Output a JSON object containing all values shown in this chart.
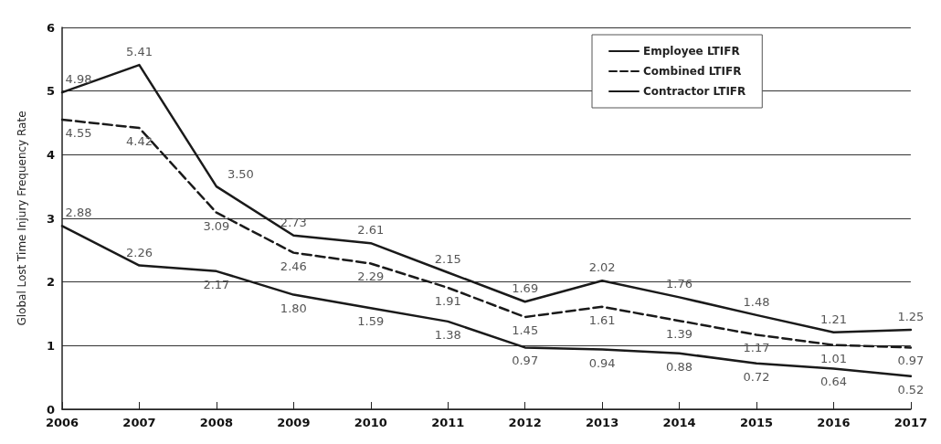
{
  "chart_data": {
    "type": "line",
    "ylabel": "Global Lost Time Injury Frequency Rate",
    "categories": [
      "2006",
      "2007",
      "2008",
      "2009",
      "2010",
      "2011",
      "2012",
      "2013",
      "2014",
      "2015",
      "2016",
      "2017"
    ],
    "series": [
      {
        "name": "Employee LTIFR",
        "color": "#1a1a1a",
        "line_style": "solid",
        "values": [
          4.98,
          5.41,
          3.5,
          2.73,
          2.61,
          2.15,
          1.69,
          2.02,
          1.76,
          1.48,
          1.21,
          1.25
        ],
        "value_labels": [
          "4.98",
          "5.41",
          "3.50",
          "2.73",
          "2.61",
          "2.15",
          "1.69",
          "2.02",
          "1.76",
          "1.48",
          "1.21",
          "1.25"
        ]
      },
      {
        "name": "Combined LTIFR",
        "color": "#1a1a1a",
        "line_style": "dashed",
        "values": [
          4.55,
          4.42,
          3.09,
          2.46,
          2.29,
          1.91,
          1.45,
          1.61,
          1.39,
          1.17,
          1.01,
          0.97
        ],
        "value_labels": [
          "4.55",
          "4.42",
          "3.09",
          "2.46",
          "2.29",
          "1.91",
          "1.45",
          "1.61",
          "1.39",
          "1.17",
          "1.01",
          "0.97"
        ]
      },
      {
        "name": "Contractor LTIFR",
        "color": "#1a1a1a",
        "line_style": "solid",
        "values": [
          2.88,
          2.26,
          2.17,
          1.8,
          1.59,
          1.38,
          0.97,
          0.94,
          0.88,
          0.72,
          0.64,
          0.52
        ],
        "value_labels": [
          "2.88",
          "2.26",
          "2.17",
          "1.80",
          "1.59",
          "1.38",
          "0.97",
          "0.94",
          "0.88",
          "0.72",
          "0.64",
          "0.52"
        ]
      }
    ],
    "ylim": [
      0,
      6
    ],
    "yticks": [
      0,
      1,
      2,
      3,
      4,
      5,
      6
    ],
    "grid": "y",
    "legend": "top",
    "marker": "none"
  }
}
